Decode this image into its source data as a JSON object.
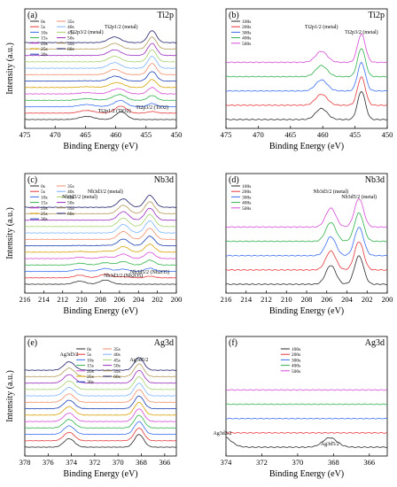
{
  "colors": {
    "0s": "#2b2b2b",
    "5s": "#e8373b",
    "10s": "#3a6ef2",
    "15s": "#2fb24a",
    "20s": "#d64ad8",
    "25s": "#d9a000",
    "30s": "#1a3fb5",
    "35s": "#f08d6a",
    "40s": "#7bb3ff",
    "45s": "#a5d16b",
    "50s": "#9a2cc0",
    "55s": "#b59b5a",
    "60s": "#1f1f6b",
    "100s": "#2b2b2b",
    "200s": "#e8373b",
    "300s": "#3a6ef2",
    "400s": "#2fb24a",
    "500s": "#d64ad8"
  },
  "chart_data": [
    {
      "panel": "(a)",
      "type": "line",
      "title": "Ti2p",
      "xlabel": "Binding Energy (eV)",
      "ylabel": "Intensity (a.u.)",
      "xlim": [
        475,
        450
      ],
      "xticks": [
        475,
        470,
        465,
        460,
        455,
        450
      ],
      "legend_labels": [
        "0s",
        "5s",
        "10s",
        "15s",
        "20s",
        "25s",
        "30s",
        "35s",
        "40s",
        "45s",
        "50s",
        "55s",
        "60s"
      ],
      "legend_placement": "top-left",
      "series_names": [
        "0s",
        "5s",
        "10s",
        "15s",
        "20s",
        "25s",
        "30s",
        "35s",
        "40s",
        "45s",
        "50s",
        "55s",
        "60s"
      ],
      "peaks": [
        {
          "x": 459.1,
          "h": 0.55,
          "w": 0.9,
          "when": "early"
        },
        {
          "x": 464.8,
          "h": 0.22,
          "w": 1.2,
          "when": "early"
        },
        {
          "x": 460.2,
          "h": 0.4,
          "w": 1.0,
          "when": "late"
        },
        {
          "x": 454.0,
          "h": 0.85,
          "w": 0.7,
          "when": "late"
        }
      ],
      "annotations": [
        "Ti2p1/2 (metal)",
        "Ti2p3/2 (metal)",
        "Ti2p1/2 (TiO2)",
        "Ti2p3/2 (TiO2)"
      ]
    },
    {
      "panel": "(b)",
      "type": "line",
      "title": "Ti2p",
      "xlabel": "Binding Energy (eV)",
      "ylabel": "",
      "xlim": [
        475,
        450
      ],
      "xticks": [
        475,
        470,
        465,
        460,
        455,
        450
      ],
      "legend_labels": [
        "100s",
        "200s",
        "300s",
        "400s",
        "500s"
      ],
      "legend_placement": "top-left",
      "series_names": [
        "100s",
        "200s",
        "300s",
        "400s",
        "500s"
      ],
      "peaks": [
        {
          "x": 460.2,
          "h": 0.35,
          "w": 0.9,
          "when": "all"
        },
        {
          "x": 454.0,
          "h": 0.9,
          "w": 0.6,
          "when": "all"
        }
      ],
      "annotations": [
        "Ti2p1/2 (metal)",
        "Ti2p3/2 (metal)"
      ]
    },
    {
      "panel": "(c)",
      "type": "line",
      "title": "Nb3d",
      "xlabel": "Binding Energy (eV)",
      "ylabel": "Intensity (a.u.)",
      "xlim": [
        216,
        200
      ],
      "xticks": [
        216,
        214,
        212,
        210,
        208,
        206,
        204,
        202,
        200
      ],
      "legend_labels": [
        "0s",
        "5s",
        "10s",
        "15s",
        "20s",
        "25s",
        "30s",
        "35s",
        "40s",
        "45s",
        "50s",
        "55s",
        "60s"
      ],
      "legend_placement": "top-left",
      "series_names": [
        "0s",
        "5s",
        "10s",
        "15s",
        "20s",
        "25s",
        "30s",
        "35s",
        "40s",
        "45s",
        "50s",
        "55s",
        "60s"
      ],
      "peaks": [
        {
          "x": 207.5,
          "h": 0.3,
          "w": 0.6,
          "when": "early"
        },
        {
          "x": 210.2,
          "h": 0.22,
          "w": 0.6,
          "when": "early"
        },
        {
          "x": 205.6,
          "h": 0.6,
          "w": 0.55,
          "when": "late"
        },
        {
          "x": 202.8,
          "h": 0.85,
          "w": 0.5,
          "when": "late"
        }
      ],
      "annotations": [
        "Nb3d3/2 (metal)",
        "Nb3d5/2 (metal)",
        "Nb3d3/2 (Nb2O5)",
        "Nb3d5/2 (Nb2O5)"
      ]
    },
    {
      "panel": "(d)",
      "type": "line",
      "title": "Nb3d",
      "xlabel": "Binding Energy (eV)",
      "ylabel": "",
      "xlim": [
        216,
        200
      ],
      "xticks": [
        216,
        214,
        212,
        210,
        208,
        206,
        204,
        202,
        200
      ],
      "legend_labels": [
        "100s",
        "200s",
        "300s",
        "400s",
        "500s"
      ],
      "legend_placement": "top-left",
      "series_names": [
        "100s",
        "200s",
        "300s",
        "400s",
        "500s"
      ],
      "peaks": [
        {
          "x": 205.6,
          "h": 0.6,
          "w": 0.5,
          "when": "all"
        },
        {
          "x": 202.8,
          "h": 0.9,
          "w": 0.45,
          "when": "all"
        }
      ],
      "annotations": [
        "Nb3d3/2 (metal)",
        "Nb3d5/2 (metal)"
      ]
    },
    {
      "panel": "(e)",
      "type": "line",
      "title": "Ag3d",
      "xlabel": "Binding Energy (eV)",
      "ylabel": "Intensity (a.u.)",
      "xlim": [
        378,
        365
      ],
      "xticks": [
        378,
        376,
        374,
        372,
        370,
        368,
        366
      ],
      "legend_labels": [
        "0s",
        "5s",
        "10s",
        "15s",
        "20s",
        "25s",
        "30s",
        "35s",
        "40s",
        "45s",
        "50s",
        "55s",
        "60s"
      ],
      "legend_placement": "top-center",
      "series_names": [
        "0s",
        "5s",
        "10s",
        "15s",
        "20s",
        "25s",
        "30s",
        "35s",
        "40s",
        "45s",
        "50s",
        "55s",
        "60s"
      ],
      "peaks": [
        {
          "x": 374.2,
          "h": 0.6,
          "w": 0.45,
          "when": "all"
        },
        {
          "x": 368.2,
          "h": 0.9,
          "w": 0.4,
          "when": "all"
        }
      ],
      "annotations": [
        "Ag3d3/2",
        "Ag3d5/2"
      ]
    },
    {
      "panel": "(f)",
      "type": "line",
      "title": "Ag3d",
      "xlabel": "Binding Energy (eV)",
      "ylabel": "",
      "xlim": [
        374,
        365
      ],
      "xticks": [
        374,
        372,
        370,
        368,
        366
      ],
      "legend_labels": [
        "100s",
        "200s",
        "300s",
        "400s",
        "500s"
      ],
      "legend_placement": "top-center",
      "series_names": [
        "100s",
        "200s",
        "300s",
        "400s",
        "500s"
      ],
      "peaks": [
        {
          "x": 374.2,
          "h": 0.35,
          "w": 0.45,
          "when": "first"
        },
        {
          "x": 368.2,
          "h": 0.3,
          "w": 0.4,
          "when": "first"
        }
      ],
      "annotations": [
        "Ag3d3/2",
        "Ag3d5/2"
      ]
    }
  ]
}
